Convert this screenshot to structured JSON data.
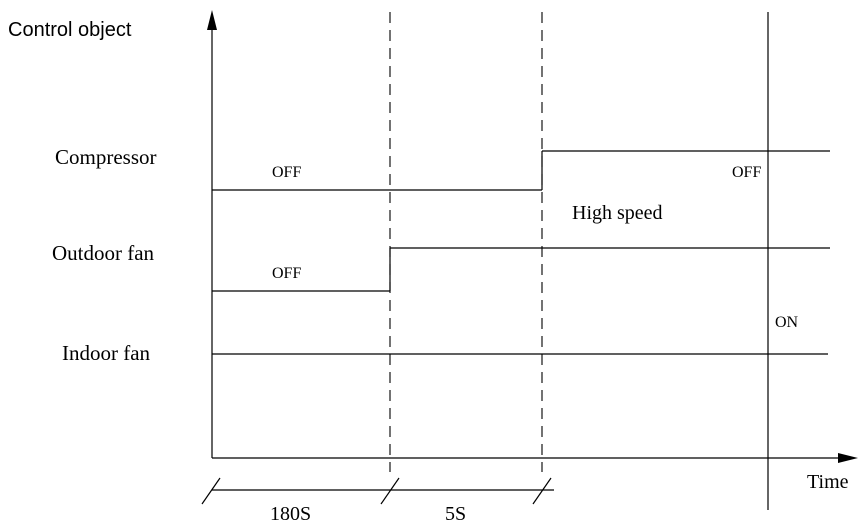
{
  "axes": {
    "y_title": "Control object",
    "x_title": "Time"
  },
  "rows": [
    {
      "id": "compressor",
      "label": "Compressor"
    },
    {
      "id": "outdoor",
      "label": "Outdoor fan"
    },
    {
      "id": "indoor",
      "label": "Indoor fan"
    }
  ],
  "states": {
    "compressor_off": "OFF",
    "compressor_off_2": "OFF",
    "outdoor_off": "OFF",
    "outdoor_high": "High speed",
    "indoor_on": "ON"
  },
  "intervals": [
    {
      "label": "180S"
    },
    {
      "label": "5S"
    }
  ],
  "colors": {
    "line": "#000000",
    "background": "#ffffff"
  }
}
